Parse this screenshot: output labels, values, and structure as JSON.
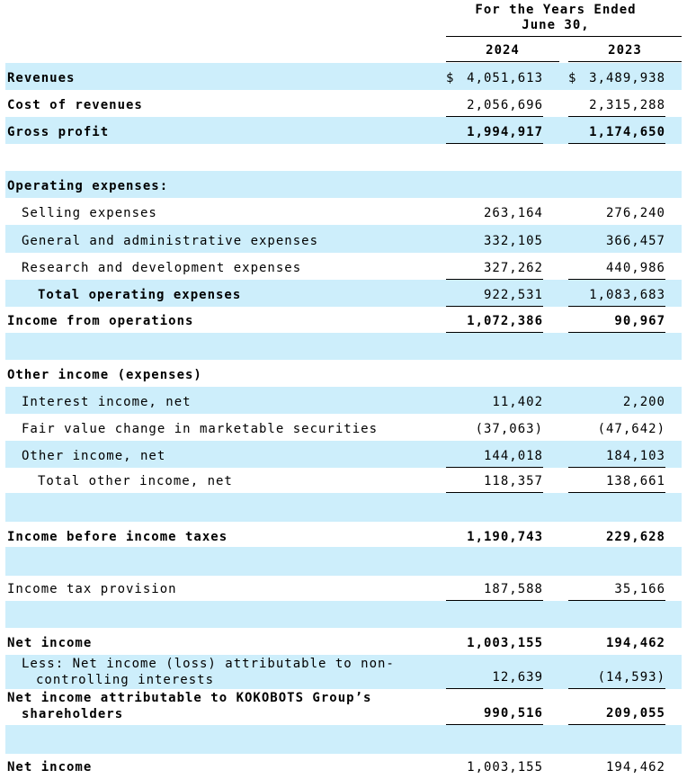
{
  "header": {
    "period_lines": [
      "For the Years Ended",
      "June 30,"
    ],
    "columns": [
      "2024",
      "2023"
    ]
  },
  "rows": [
    {
      "label": "Revenues",
      "currency": "$",
      "values": [
        "4,051,613",
        "3,489,938"
      ]
    },
    {
      "label": "Cost of revenues",
      "values": [
        "2,056,696",
        "2,315,288"
      ]
    },
    {
      "label": "Gross profit",
      "values": [
        "1,994,917",
        "1,174,650"
      ]
    },
    {
      "label": "Operating expenses:"
    },
    {
      "label": "Selling expenses",
      "values": [
        "263,164",
        "276,240"
      ]
    },
    {
      "label": "General and administrative expenses",
      "values": [
        "332,105",
        "366,457"
      ]
    },
    {
      "label": "Research and development expenses",
      "values": [
        "327,262",
        "440,986"
      ]
    },
    {
      "label": "Total operating expenses",
      "values": [
        "922,531",
        "1,083,683"
      ]
    },
    {
      "label": "Income from operations",
      "values": [
        "1,072,386",
        "90,967"
      ]
    },
    {
      "label": "Other income (expenses)"
    },
    {
      "label": "Interest income, net",
      "values": [
        "11,402",
        "2,200"
      ]
    },
    {
      "label": "Fair value change in marketable securities",
      "values": [
        "(37,063)",
        "(47,642)"
      ]
    },
    {
      "label": "Other income, net",
      "values": [
        "144,018",
        "184,103"
      ]
    },
    {
      "label": "Total other income, net",
      "values": [
        "118,357",
        "138,661"
      ]
    },
    {
      "label": "Income before income taxes",
      "values": [
        "1,190,743",
        "229,628"
      ]
    },
    {
      "label": "Income tax provision",
      "values": [
        "187,588",
        "35,166"
      ]
    },
    {
      "label": "Net income",
      "values": [
        "1,003,155",
        "194,462"
      ]
    },
    {
      "label_lines": [
        "Less: Net income (loss) attributable to non-",
        "controlling interests"
      ],
      "values": [
        "12,639",
        "(14,593)"
      ]
    },
    {
      "label_lines": [
        "Net income attributable to KOKOBOTS Group’s",
        "shareholders"
      ],
      "values": [
        "990,516",
        "209,055"
      ]
    },
    {
      "label": "Net income",
      "values": [
        "1,003,155",
        "194,462"
      ]
    }
  ]
}
